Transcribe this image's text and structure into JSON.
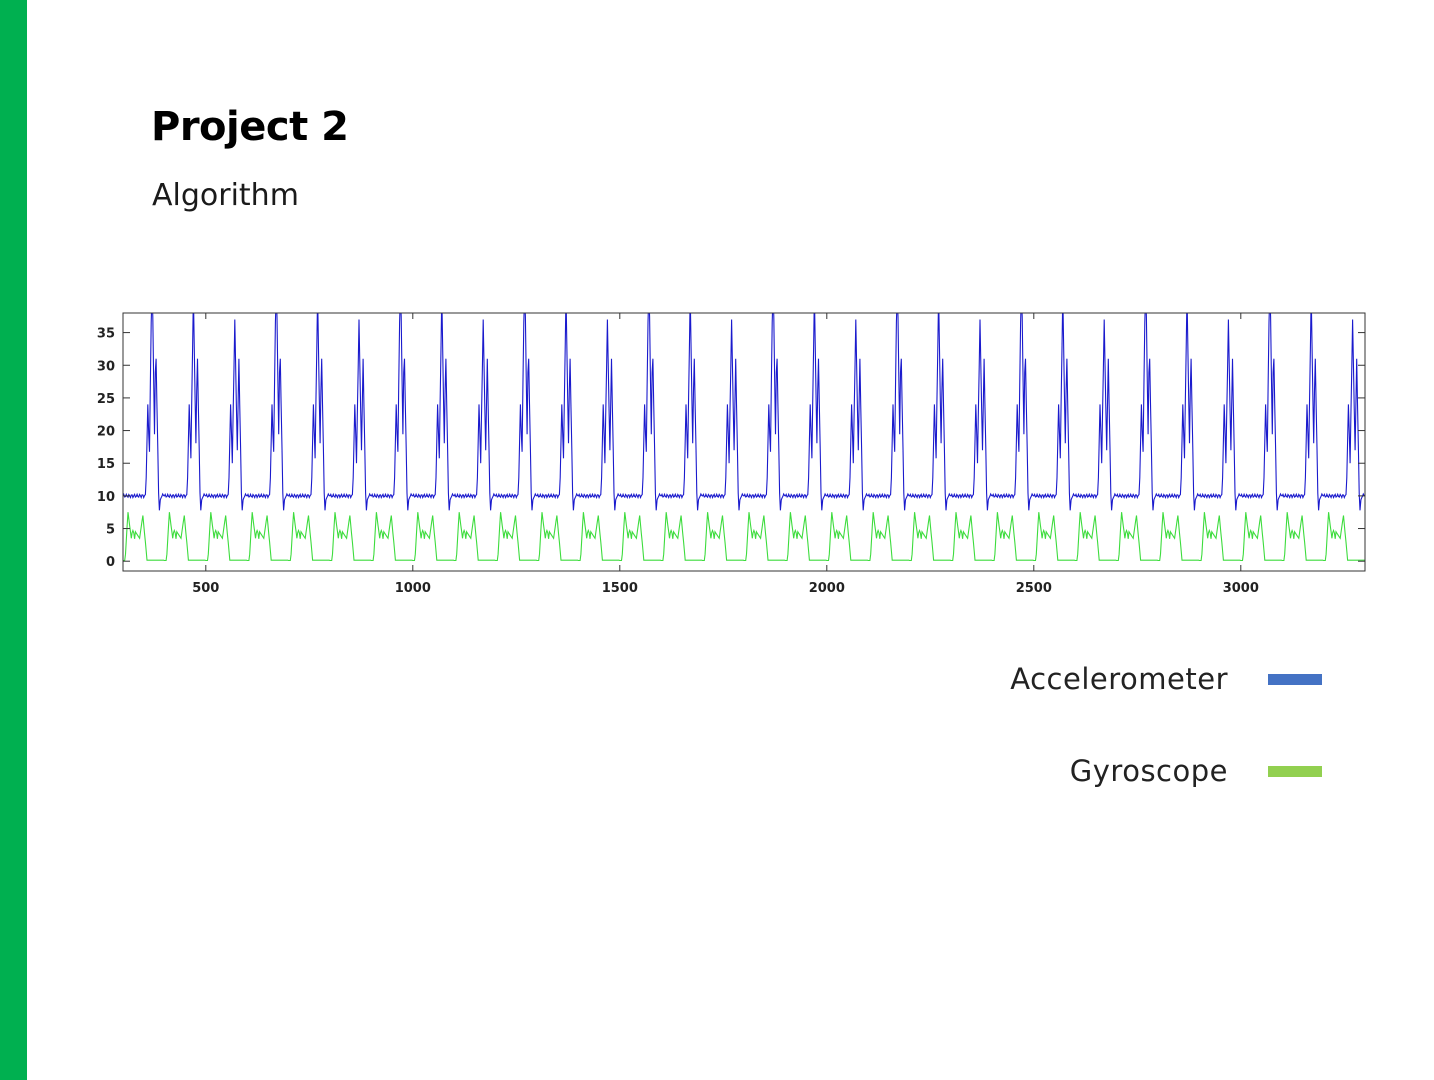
{
  "slide": {
    "title": "Project 2",
    "subtitle": "Algorithm",
    "accent_color": "#00b050"
  },
  "legend": [
    {
      "label": "Accelerometer",
      "color": "#4472c4"
    },
    {
      "label": "Gyroscope",
      "color": "#92d050"
    }
  ],
  "chart_data": {
    "type": "line",
    "title": "",
    "xlabel": "",
    "ylabel": "",
    "xlim": [
      300,
      3300
    ],
    "ylim": [
      -1.5,
      38
    ],
    "x_ticks": [
      500,
      1000,
      1500,
      2000,
      2500,
      3000
    ],
    "y_ticks": [
      0,
      5,
      10,
      15,
      20,
      25,
      30,
      35
    ],
    "grid": false,
    "period": 50,
    "series": [
      {
        "name": "Accelerometer",
        "color": "#1a1acd",
        "baseline": 10,
        "x": [
          300,
          320,
          340,
          345,
          350,
          355,
          360,
          370,
          375,
          380,
          385,
          395,
          400,
          410,
          420,
          440,
          445,
          450,
          455,
          460,
          470,
          480,
          490,
          500,
          520,
          540,
          545,
          550,
          555,
          560,
          570,
          580,
          590,
          600,
          620,
          640,
          650,
          700,
          720,
          740,
          750,
          800,
          820,
          840,
          850,
          900,
          920,
          940,
          950,
          1000,
          1020,
          1040,
          1050,
          1100,
          1120,
          1140,
          1150,
          1200,
          1220,
          1240,
          1250,
          1300,
          1320,
          1340,
          1350,
          1400,
          1420,
          1440,
          1450,
          1500,
          1520,
          1540,
          1550,
          1600,
          1620,
          1640,
          1650,
          1700,
          1720,
          1740,
          1750,
          1800,
          1820,
          1840,
          1850,
          1900,
          1920,
          1940,
          1950,
          2000,
          2020,
          2040,
          2050,
          2100,
          2120,
          2140,
          2150,
          2200,
          2220,
          2240,
          2250,
          2300,
          2320,
          2340,
          2350,
          2400,
          2420,
          2440,
          2450,
          2500,
          2520,
          2540,
          2550,
          2600,
          2620,
          2640,
          2650,
          2700,
          2720,
          2740,
          2750,
          2800,
          2820,
          2840,
          2850,
          2900,
          2920,
          2940,
          2950,
          3000,
          3020,
          3040,
          3050,
          3100,
          3120,
          3140,
          3150,
          3200,
          3220,
          3240,
          3250,
          3300
        ],
        "y": [
          10,
          10,
          10,
          22,
          12,
          34,
          16,
          8,
          14,
          10,
          31,
          14,
          11,
          10,
          10,
          10,
          24,
          12,
          36,
          18,
          7,
          14,
          10,
          10,
          10,
          10,
          24,
          12,
          36,
          18,
          10,
          10,
          10,
          10,
          10,
          10,
          36,
          10,
          10,
          10,
          36,
          10,
          10,
          10,
          36,
          10,
          10,
          10,
          36,
          10,
          10,
          10,
          36,
          10,
          10,
          10,
          36,
          10,
          10,
          10,
          36,
          10,
          10,
          10,
          36,
          10,
          10,
          10,
          36,
          10,
          10,
          10,
          36,
          10,
          10,
          10,
          36,
          10,
          10,
          10,
          36,
          10,
          10,
          10,
          36,
          10,
          10,
          10,
          36,
          10,
          10,
          10,
          36,
          10,
          10,
          10,
          36,
          10,
          10,
          10,
          36,
          10,
          10,
          10,
          36,
          10,
          10,
          10,
          36,
          10,
          10,
          10,
          36,
          10,
          10,
          10,
          36,
          10,
          10,
          10,
          36,
          10,
          10,
          10,
          36,
          10,
          10,
          10,
          36,
          10,
          10,
          10,
          36,
          10,
          10,
          10,
          36,
          10,
          10,
          10,
          36,
          10
        ]
      },
      {
        "name": "Gyroscope",
        "color": "#3ddc3d",
        "baseline": 0,
        "x": [
          300,
          330,
          340,
          350,
          360,
          370,
          380,
          390,
          400,
          420,
          440,
          450,
          460,
          470,
          480,
          490,
          500,
          520,
          540,
          550,
          560,
          570,
          580,
          590,
          600,
          650,
          700,
          750,
          800,
          850,
          900,
          950,
          1000,
          1050,
          1100,
          1150,
          1200,
          1250,
          1300,
          1350,
          1400,
          1450,
          1500,
          1550,
          1600,
          1650,
          1700,
          1750,
          1800,
          1850,
          1900,
          1950,
          2000,
          2050,
          2100,
          2150,
          2200,
          2250,
          2300,
          2350,
          2400,
          2450,
          2500,
          2550,
          2600,
          2650,
          2700,
          2750,
          2800,
          2850,
          2900,
          2950,
          3000,
          3050,
          3100,
          3150,
          3200,
          3250,
          3300
        ],
        "y": [
          0,
          0,
          3,
          7,
          2,
          5,
          4,
          1,
          0,
          0,
          0,
          8,
          5,
          6,
          3,
          7,
          0,
          0,
          0,
          8,
          4,
          6,
          2,
          7,
          0,
          8,
          0,
          8,
          0,
          8,
          0,
          8,
          0,
          8,
          0,
          8,
          0,
          8,
          0,
          8,
          0,
          8,
          0,
          8,
          0,
          8,
          0,
          8,
          0,
          8,
          0,
          8,
          0,
          8,
          0,
          8,
          0,
          8,
          0,
          8,
          0,
          8,
          0,
          8,
          0,
          8,
          0,
          8,
          0,
          8,
          0,
          8,
          0,
          8,
          0,
          8,
          0,
          8,
          0
        ]
      }
    ]
  }
}
